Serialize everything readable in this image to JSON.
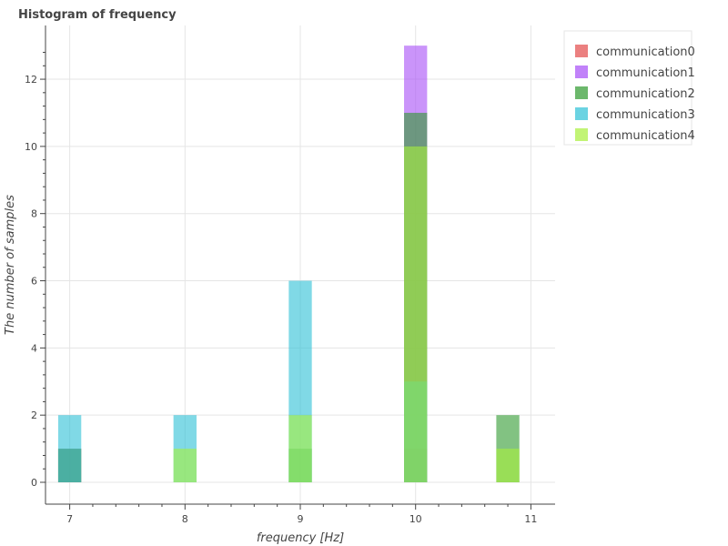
{
  "chart_data": {
    "type": "bar",
    "title": "Histogram of frequency",
    "xlabel": "frequency [Hz]",
    "ylabel": "The number of samples",
    "xlim": [
      6.79,
      11.21
    ],
    "ylim": [
      -0.65,
      13.6
    ],
    "xticks": [
      7,
      8,
      9,
      10,
      11
    ],
    "yticks": [
      0,
      2,
      4,
      6,
      8,
      10,
      12
    ],
    "grid": true,
    "legend_position": "top-right",
    "bin_width": 0.2,
    "series": [
      {
        "name": "communication0",
        "color": "#e24a4a",
        "bins": [
          {
            "x": 7.0,
            "count": 1
          },
          {
            "x": 10.0,
            "count": 1
          }
        ]
      },
      {
        "name": "communication1",
        "color": "#a64df7",
        "bins": [
          {
            "x": 10.0,
            "count": 13
          }
        ]
      },
      {
        "name": "communication2",
        "color": "#2e9a2e",
        "bins": [
          {
            "x": 7.0,
            "count": 1
          },
          {
            "x": 9.0,
            "count": 1
          },
          {
            "x": 10.0,
            "count": 11
          },
          {
            "x": 10.8,
            "count": 2
          }
        ]
      },
      {
        "name": "communication3",
        "color": "#2cc0d6",
        "bins": [
          {
            "x": 7.0,
            "count": 2
          },
          {
            "x": 8.0,
            "count": 2
          },
          {
            "x": 9.0,
            "count": 6
          },
          {
            "x": 10.0,
            "count": 3
          }
        ]
      },
      {
        "name": "communication4",
        "color": "#a8f03a",
        "bins": [
          {
            "x": 8.0,
            "count": 1
          },
          {
            "x": 9.0,
            "count": 2
          },
          {
            "x": 10.0,
            "count": 10
          },
          {
            "x": 10.8,
            "count": 1
          }
        ]
      }
    ]
  }
}
